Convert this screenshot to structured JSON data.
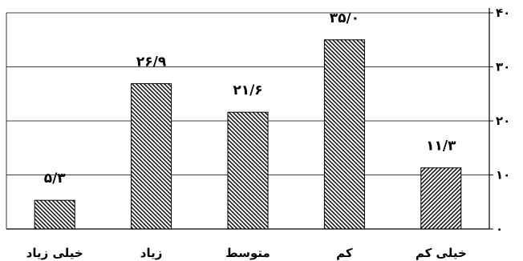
{
  "chart_data": {
    "type": "bar",
    "categories": [
      "خیلی کم",
      "کم",
      "متوسط",
      "زیاد",
      "خیلی زیاد"
    ],
    "values": [
      11.3,
      35.0,
      21.6,
      26.9,
      5.3
    ],
    "data_labels": [
      "۱۱/۳",
      "۳۵/۰",
      "۲۱/۶",
      "۲۶/۹",
      "۵/۳"
    ],
    "category_order": "right-to-left",
    "ylim": [
      0,
      40
    ],
    "y_ticks": [
      0,
      10,
      20,
      30,
      40
    ],
    "y_tick_labels": [
      "۰",
      "۱۰",
      "۲۰",
      "۳۰",
      "۴۰"
    ],
    "y_axis_side": "right",
    "grid": true,
    "bar_fill": "diagonal-hatch",
    "colors": {
      "bar_stroke": "#000000",
      "hatch": "#000000",
      "grid": "#000000",
      "background": "#ffffff"
    },
    "title": "",
    "xlabel": "",
    "ylabel": ""
  }
}
